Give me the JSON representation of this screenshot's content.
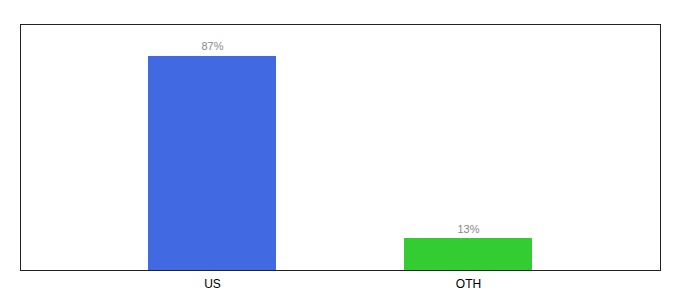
{
  "chart_data": {
    "type": "bar",
    "categories": [
      "US",
      "OTH"
    ],
    "values": [
      87,
      13
    ],
    "value_labels": [
      "87%",
      "13%"
    ],
    "colors": [
      "#4169e1",
      "#33cc33"
    ],
    "ylim": [
      0,
      100
    ],
    "data_labels": true,
    "tick_labels": "x"
  }
}
